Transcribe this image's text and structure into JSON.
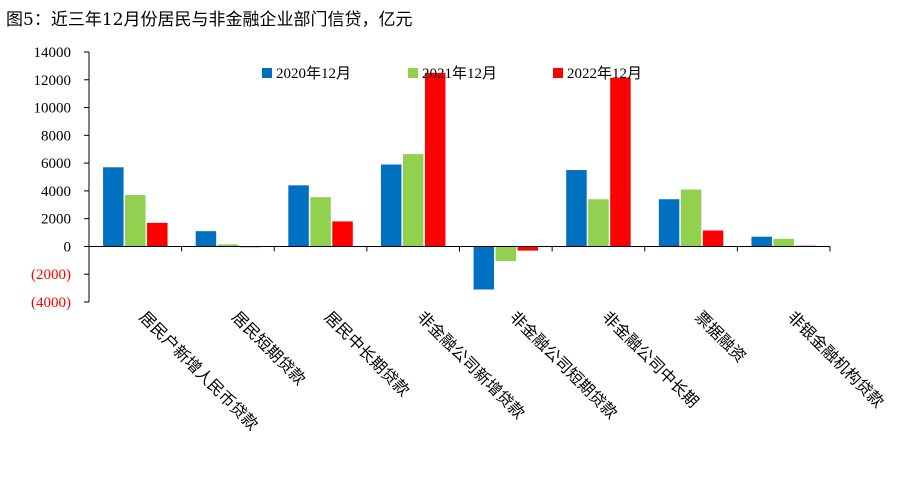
{
  "chart_data": {
    "type": "bar",
    "title": "图5：近三年12月份居民与非金融企业部门信贷，亿元",
    "categories": [
      "居民户新增人民币贷款",
      "居民短期贷款",
      "居民中长期贷款",
      "非金融公司新增贷款",
      "非金融公司短期贷款",
      "非金融公司中长期",
      "票据融资",
      "非银金融机构贷款"
    ],
    "series": [
      {
        "name": "2020年12月",
        "color": "#0070C0",
        "values": [
          5700,
          1100,
          4400,
          5900,
          -3100,
          5500,
          3400,
          700
        ]
      },
      {
        "name": "2021年12月",
        "color": "#92D050",
        "values": [
          3700,
          150,
          3550,
          6650,
          -1050,
          3400,
          4100,
          550
        ]
      },
      {
        "name": "2022年12月",
        "color": "#FF0000",
        "values": [
          1700,
          -50,
          1800,
          12500,
          -300,
          12150,
          1150,
          50
        ]
      }
    ],
    "ylim": [
      -4000,
      14000
    ],
    "yticks": [
      14000,
      12000,
      10000,
      8000,
      6000,
      4000,
      2000,
      0,
      -2000,
      -4000
    ],
    "ytick_labels": [
      "14000",
      "12000",
      "10000",
      "8000",
      "6000",
      "4000",
      "2000",
      "0",
      "(2000)",
      "(4000)"
    ],
    "negative_tick_color": "#FF0000",
    "legend_position": "top-center",
    "xlabel": "",
    "ylabel": ""
  }
}
